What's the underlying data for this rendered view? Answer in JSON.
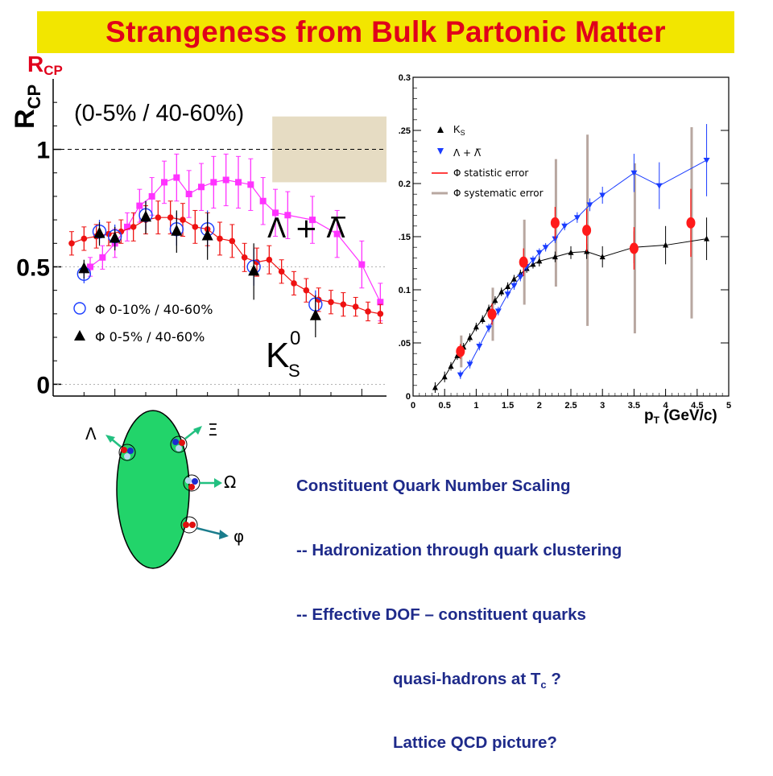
{
  "title": "Strangeness from Bulk Partonic Matter",
  "rcp_label": {
    "main": "R",
    "sub": "CP"
  },
  "chart_data": [
    {
      "type": "scatter",
      "ylabel_main": "R",
      "ylabel_sub": "CP",
      "annotation": "(0-5% / 40-60%)",
      "ylim": [
        -0.05,
        1.3
      ],
      "xlim": [
        0,
        5.4
      ],
      "ytick_labels": [
        "0",
        "0.5",
        "1"
      ],
      "yticks": [
        0,
        0.5,
        1
      ],
      "reference_line": 1,
      "series_labels": {
        "lambda_text": "Λ + Λ̅",
        "k0s_main": "K",
        "k0s_sup": "0",
        "k0s_sub": "S"
      },
      "legend": [
        {
          "symbol": "open-circle",
          "label": "Φ  0-10% / 40-60%"
        },
        {
          "symbol": "triangle",
          "label": "Φ   0-5% / 40-60%"
        }
      ],
      "systematic_band": {
        "x": [
          3.55,
          5.4
        ],
        "y": [
          0.86,
          1.14
        ]
      },
      "series": [
        {
          "name": "magenta",
          "color": "#ff33ff",
          "x": [
            0.6,
            0.8,
            1.0,
            1.2,
            1.4,
            1.6,
            1.8,
            2.0,
            2.2,
            2.4,
            2.6,
            2.8,
            3.0,
            3.2,
            3.4,
            3.6,
            3.8,
            4.2,
            4.6,
            5.0,
            5.3
          ],
          "y": [
            0.5,
            0.54,
            0.6,
            0.67,
            0.76,
            0.8,
            0.86,
            0.88,
            0.81,
            0.84,
            0.86,
            0.87,
            0.86,
            0.85,
            0.78,
            0.73,
            0.72,
            0.7,
            0.64,
            0.51,
            0.35
          ],
          "err": [
            0.04,
            0.05,
            0.06,
            0.06,
            0.07,
            0.08,
            0.09,
            0.1,
            0.1,
            0.1,
            0.11,
            0.11,
            0.11,
            0.11,
            0.1,
            0.1,
            0.1,
            0.1,
            0.1,
            0.1,
            0.08
          ]
        },
        {
          "name": "red",
          "color": "#ee1111",
          "x": [
            0.3,
            0.5,
            0.7,
            0.9,
            1.1,
            1.3,
            1.5,
            1.7,
            1.9,
            2.1,
            2.3,
            2.5,
            2.7,
            2.9,
            3.1,
            3.3,
            3.5,
            3.7,
            3.9,
            4.1,
            4.3,
            4.5,
            4.7,
            4.9,
            5.1,
            5.3
          ],
          "y": [
            0.6,
            0.62,
            0.63,
            0.64,
            0.65,
            0.67,
            0.7,
            0.71,
            0.71,
            0.7,
            0.67,
            0.66,
            0.62,
            0.61,
            0.54,
            0.52,
            0.53,
            0.48,
            0.43,
            0.4,
            0.36,
            0.35,
            0.34,
            0.33,
            0.31,
            0.3
          ],
          "err": [
            0.05,
            0.05,
            0.05,
            0.05,
            0.05,
            0.06,
            0.06,
            0.07,
            0.07,
            0.07,
            0.07,
            0.07,
            0.07,
            0.07,
            0.06,
            0.06,
            0.06,
            0.05,
            0.05,
            0.05,
            0.05,
            0.05,
            0.05,
            0.04,
            0.04,
            0.04
          ]
        },
        {
          "name": "triangles",
          "color": "#000000",
          "x": [
            0.5,
            0.75,
            1.0,
            1.5,
            2.0,
            2.5,
            3.25,
            4.25
          ],
          "y": [
            0.49,
            0.64,
            0.62,
            0.71,
            0.65,
            0.63,
            0.48,
            0.29
          ],
          "err": [
            0.04,
            0.05,
            0.05,
            0.07,
            0.09,
            0.1,
            0.12,
            0.09
          ]
        },
        {
          "name": "open-circles",
          "color": "#1a3cff",
          "x": [
            0.5,
            0.75,
            1.0,
            1.5,
            2.0,
            2.5,
            3.25,
            4.25
          ],
          "y": [
            0.47,
            0.65,
            0.63,
            0.72,
            0.66,
            0.66,
            0.5,
            0.34
          ],
          "err": [
            0.04,
            0.05,
            0.05,
            0.06,
            0.07,
            0.08,
            0.08,
            0.06
          ]
        }
      ]
    },
    {
      "type": "scatter",
      "xlabel": "p",
      "xlabel_sub": "T",
      "xlabel_rest": " (GeV/c)",
      "xlim": [
        0,
        5
      ],
      "ylim": [
        0,
        0.3
      ],
      "xticks": [
        0,
        0.5,
        1,
        1.5,
        2,
        2.5,
        3,
        3.5,
        4,
        4.5,
        5
      ],
      "xtick_labels": [
        "0",
        "0.5",
        "1",
        "1.5",
        "2",
        "2.5",
        "3",
        "3.5",
        "4",
        "4.5",
        "5"
      ],
      "yticks": [
        0,
        0.05,
        0.1,
        0.15,
        0.2,
        0.25,
        0.3
      ],
      "ytick_labels": [
        "0",
        ".05",
        "0.1",
        ".15",
        "0.2",
        ".25",
        "0.3"
      ],
      "legend": [
        {
          "symbol": "triangle",
          "label_main": "K",
          "label_sub": "S"
        },
        {
          "symbol": "inverted-triangle",
          "label": "Λ + Λ̅"
        },
        {
          "symbol": "red-line",
          "label": "Φ statistic error"
        },
        {
          "symbol": "grey-line",
          "label": "Φ systematic error"
        }
      ],
      "series": [
        {
          "name": "K_S",
          "color": "#000000",
          "x": [
            0.35,
            0.5,
            0.6,
            0.7,
            0.8,
            0.9,
            1.0,
            1.1,
            1.2,
            1.3,
            1.4,
            1.5,
            1.6,
            1.7,
            1.8,
            1.9,
            2.0,
            2.25,
            2.5,
            2.75,
            3.0,
            3.5,
            4.0,
            4.65
          ],
          "y": [
            0.008,
            0.018,
            0.028,
            0.038,
            0.046,
            0.055,
            0.065,
            0.072,
            0.082,
            0.09,
            0.098,
            0.103,
            0.11,
            0.115,
            0.12,
            0.124,
            0.127,
            0.131,
            0.135,
            0.136,
            0.131,
            0.14,
            0.142,
            0.148
          ],
          "err": [
            0.005,
            0.005,
            0.004,
            0.004,
            0.004,
            0.004,
            0.004,
            0.004,
            0.004,
            0.004,
            0.004,
            0.004,
            0.004,
            0.004,
            0.004,
            0.004,
            0.005,
            0.005,
            0.006,
            0.007,
            0.01,
            0.015,
            0.018,
            0.02
          ]
        },
        {
          "name": "Lambda",
          "color": "#1a3cff",
          "x": [
            0.75,
            0.9,
            1.05,
            1.2,
            1.35,
            1.5,
            1.6,
            1.7,
            1.8,
            1.9,
            2.0,
            2.1,
            2.25,
            2.4,
            2.6,
            2.8,
            3.0,
            3.5,
            3.9,
            4.65
          ],
          "y": [
            0.02,
            0.03,
            0.047,
            0.064,
            0.08,
            0.096,
            0.104,
            0.112,
            0.122,
            0.128,
            0.135,
            0.14,
            0.148,
            0.16,
            0.168,
            0.18,
            0.189,
            0.21,
            0.198,
            0.222
          ],
          "err": [
            0.004,
            0.004,
            0.004,
            0.004,
            0.004,
            0.004,
            0.004,
            0.004,
            0.004,
            0.004,
            0.004,
            0.004,
            0.004,
            0.004,
            0.005,
            0.006,
            0.008,
            0.018,
            0.022,
            0.034
          ]
        },
        {
          "name": "Phi",
          "color": "#ff0000",
          "x": [
            0.75,
            1.25,
            1.75,
            2.25,
            2.75,
            3.5,
            4.4
          ],
          "y": [
            0.042,
            0.077,
            0.126,
            0.163,
            0.156,
            0.139,
            0.163
          ],
          "stat": [
            0.007,
            0.01,
            0.013,
            0.015,
            0.02,
            0.02,
            0.032
          ],
          "sys": [
            0.015,
            0.025,
            0.04,
            0.06,
            0.09,
            0.08,
            0.09
          ]
        }
      ]
    }
  ],
  "diagram": {
    "labels": {
      "lambda": "Λ",
      "xi": "Ξ",
      "omega": "Ω",
      "phi": "φ"
    }
  },
  "text_lines": [
    "Constituent Quark Number Scaling",
    "-- Hadronization through quark clustering",
    "-- Effective DOF – constituent quarks"
  ],
  "text_indented": [
    {
      "main": "quasi-hadrons at T",
      "sub": "c",
      "rest": " ?"
    },
    {
      "main": "Lattice QCD picture?",
      "sub": "",
      "rest": ""
    }
  ]
}
